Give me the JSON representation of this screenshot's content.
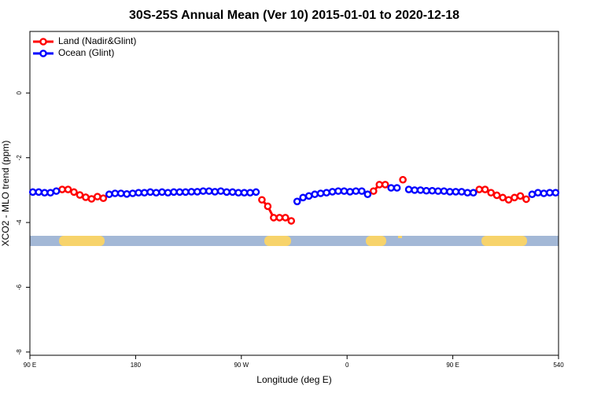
{
  "chart_data": {
    "type": "line",
    "title": "30S-25S Annual Mean (Ver 10)   2015-01-01 to 2020-12-18",
    "x_label": "Longitude (deg E)",
    "y_label": "XCO2 - MLO trend (ppm)",
    "x": [
      92.5,
      97.5,
      102.5,
      107.5,
      112.5,
      117.5,
      122.5,
      127.5,
      132.5,
      137.5,
      142.5,
      147.5,
      152.5,
      157.5,
      162.5,
      167.5,
      172.5,
      177.5,
      182.5,
      187.5,
      192.5,
      197.5,
      202.5,
      207.5,
      212.5,
      217.5,
      222.5,
      227.5,
      232.5,
      237.5,
      242.5,
      247.5,
      252.5,
      257.5,
      262.5,
      267.5,
      272.5,
      277.5,
      282.5,
      287.5,
      292.5,
      297.5,
      302.5,
      307.5,
      312.5,
      317.5,
      322.5,
      327.5,
      332.5,
      337.5,
      342.5,
      347.5,
      352.5,
      357.5,
      362.5,
      367.5,
      372.5,
      377.5,
      382.5,
      387.5,
      392.5,
      397.5,
      402.5,
      407.5,
      412.5,
      417.5,
      422.5,
      427.5,
      432.5,
      437.5,
      442.5,
      447.5,
      452.5,
      457.5,
      462.5,
      467.5,
      472.5,
      477.5,
      482.5,
      487.5,
      492.5,
      497.5,
      502.5,
      507.5,
      512.5,
      517.5,
      522.5,
      527.5,
      532.5,
      537.5
    ],
    "series": [
      {
        "name": "Land (Nadir&Glint)",
        "color": "#ff0000",
        "values": [
          null,
          null,
          null,
          null,
          null,
          -2.98,
          -2.98,
          -3.06,
          -3.15,
          -3.22,
          -3.27,
          -3.2,
          -3.25,
          null,
          null,
          null,
          null,
          null,
          null,
          null,
          null,
          null,
          null,
          null,
          null,
          null,
          null,
          null,
          null,
          null,
          null,
          null,
          null,
          null,
          null,
          null,
          null,
          null,
          null,
          -3.3,
          -3.5,
          -3.85,
          -3.85,
          -3.85,
          -3.95,
          null,
          null,
          null,
          null,
          null,
          null,
          null,
          null,
          null,
          null,
          null,
          null,
          null,
          -3.03,
          -2.83,
          -2.83,
          null,
          null,
          -2.68,
          null,
          null,
          null,
          null,
          null,
          null,
          null,
          null,
          null,
          null,
          null,
          null,
          -2.98,
          -2.98,
          -3.08,
          -3.16,
          -3.23,
          -3.3,
          -3.23,
          -3.18,
          -3.28,
          null,
          null,
          null,
          null,
          null
        ]
      },
      {
        "name": "Ocean (Glint)",
        "color": "#0000ff",
        "values": [
          -3.06,
          -3.06,
          -3.08,
          -3.08,
          -3.03,
          null,
          null,
          null,
          null,
          null,
          null,
          null,
          null,
          -3.13,
          -3.1,
          -3.1,
          -3.12,
          -3.1,
          -3.08,
          -3.08,
          -3.06,
          -3.08,
          -3.06,
          -3.08,
          -3.06,
          -3.06,
          -3.06,
          -3.05,
          -3.05,
          -3.03,
          -3.03,
          -3.05,
          -3.03,
          -3.06,
          -3.06,
          -3.08,
          -3.08,
          -3.08,
          -3.06,
          null,
          null,
          null,
          null,
          null,
          null,
          -3.35,
          -3.23,
          -3.18,
          -3.13,
          -3.1,
          -3.08,
          -3.05,
          -3.03,
          -3.03,
          -3.05,
          -3.03,
          -3.03,
          -3.13,
          null,
          null,
          null,
          -2.93,
          -2.93,
          null,
          -2.98,
          -3.0,
          -3.0,
          -3.02,
          -3.02,
          -3.03,
          -3.03,
          -3.05,
          -3.05,
          -3.05,
          -3.08,
          -3.08,
          null,
          null,
          null,
          null,
          null,
          null,
          null,
          null,
          null,
          -3.13,
          -3.08,
          -3.1,
          -3.08,
          -3.08
        ]
      }
    ],
    "xlim": [
      90,
      540
    ],
    "xticks": [
      {
        "value": 90,
        "label": "90 E"
      },
      180,
      {
        "value": 270,
        "label": "90 W"
      },
      {
        "value": 360,
        "label": "0"
      },
      {
        "value": 450,
        "label": "90 E"
      },
      540
    ],
    "ylim": [
      -8.1,
      1.9
    ],
    "yticks": [
      0,
      -2,
      -4,
      -6,
      -8
    ],
    "legend": "upper left"
  }
}
